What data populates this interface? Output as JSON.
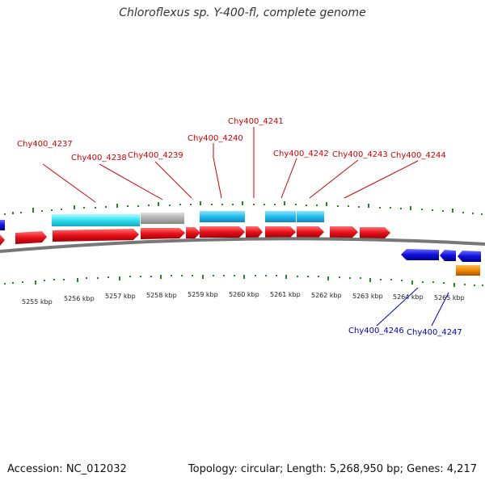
{
  "title": "Chloroflexus sp. Y-400-fl, complete genome",
  "footer": {
    "accession": "Accession: NC_012032",
    "summary": "Topology: circular; Length: 5,268,950 bp; Genes: 4,217"
  },
  "axis_labels": [
    "5255 kbp",
    "5256 kbp",
    "5257 kbp",
    "5258 kbp",
    "5259 kbp",
    "5260 kbp",
    "5261 kbp",
    "5262 kbp",
    "5263 kbp",
    "5264 kbp",
    "5265 kbp"
  ],
  "forward_genes": [
    "Chy400_4237",
    "Chy400_4238",
    "Chy400_4239",
    "Chy400_4240",
    "Chy400_4241",
    "Chy400_4242",
    "Chy400_4243",
    "Chy400_4244"
  ],
  "reverse_genes": [
    "Chy400_4246",
    "Chy400_4247"
  ],
  "colors": {
    "forward_cds": "#e8101a",
    "reverse_cds": "#1010dd",
    "cyan_feature": "#22ccee",
    "light_cyan_feature": "#55ddee",
    "gray_feature": "#aaaaaa",
    "orange_feature": "#ee8800",
    "tick_green": "#228822",
    "backbone": "#777777"
  }
}
